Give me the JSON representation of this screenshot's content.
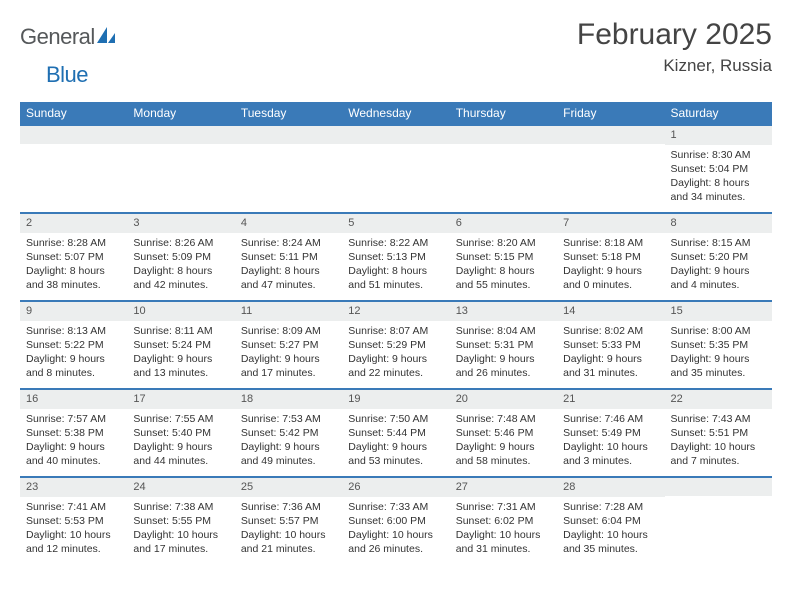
{
  "brand": {
    "name1": "General",
    "name2": "Blue"
  },
  "title": "February 2025",
  "location": "Kizner, Russia",
  "colors": {
    "header_bg": "#3a7ab8",
    "header_text": "#ffffff",
    "border": "#3a7ab8",
    "daynum_bg": "#eceeee",
    "text": "#333333",
    "brand_gray": "#55585a",
    "brand_blue": "#1f6fb2",
    "page_bg": "#ffffff"
  },
  "weekdays": [
    "Sunday",
    "Monday",
    "Tuesday",
    "Wednesday",
    "Thursday",
    "Friday",
    "Saturday"
  ],
  "weeks": [
    [
      null,
      null,
      null,
      null,
      null,
      null,
      {
        "n": "1",
        "sr": "8:30 AM",
        "ss": "5:04 PM",
        "dl": "8 hours and 34 minutes."
      }
    ],
    [
      {
        "n": "2",
        "sr": "8:28 AM",
        "ss": "5:07 PM",
        "dl": "8 hours and 38 minutes."
      },
      {
        "n": "3",
        "sr": "8:26 AM",
        "ss": "5:09 PM",
        "dl": "8 hours and 42 minutes."
      },
      {
        "n": "4",
        "sr": "8:24 AM",
        "ss": "5:11 PM",
        "dl": "8 hours and 47 minutes."
      },
      {
        "n": "5",
        "sr": "8:22 AM",
        "ss": "5:13 PM",
        "dl": "8 hours and 51 minutes."
      },
      {
        "n": "6",
        "sr": "8:20 AM",
        "ss": "5:15 PM",
        "dl": "8 hours and 55 minutes."
      },
      {
        "n": "7",
        "sr": "8:18 AM",
        "ss": "5:18 PM",
        "dl": "9 hours and 0 minutes."
      },
      {
        "n": "8",
        "sr": "8:15 AM",
        "ss": "5:20 PM",
        "dl": "9 hours and 4 minutes."
      }
    ],
    [
      {
        "n": "9",
        "sr": "8:13 AM",
        "ss": "5:22 PM",
        "dl": "9 hours and 8 minutes."
      },
      {
        "n": "10",
        "sr": "8:11 AM",
        "ss": "5:24 PM",
        "dl": "9 hours and 13 minutes."
      },
      {
        "n": "11",
        "sr": "8:09 AM",
        "ss": "5:27 PM",
        "dl": "9 hours and 17 minutes."
      },
      {
        "n": "12",
        "sr": "8:07 AM",
        "ss": "5:29 PM",
        "dl": "9 hours and 22 minutes."
      },
      {
        "n": "13",
        "sr": "8:04 AM",
        "ss": "5:31 PM",
        "dl": "9 hours and 26 minutes."
      },
      {
        "n": "14",
        "sr": "8:02 AM",
        "ss": "5:33 PM",
        "dl": "9 hours and 31 minutes."
      },
      {
        "n": "15",
        "sr": "8:00 AM",
        "ss": "5:35 PM",
        "dl": "9 hours and 35 minutes."
      }
    ],
    [
      {
        "n": "16",
        "sr": "7:57 AM",
        "ss": "5:38 PM",
        "dl": "9 hours and 40 minutes."
      },
      {
        "n": "17",
        "sr": "7:55 AM",
        "ss": "5:40 PM",
        "dl": "9 hours and 44 minutes."
      },
      {
        "n": "18",
        "sr": "7:53 AM",
        "ss": "5:42 PM",
        "dl": "9 hours and 49 minutes."
      },
      {
        "n": "19",
        "sr": "7:50 AM",
        "ss": "5:44 PM",
        "dl": "9 hours and 53 minutes."
      },
      {
        "n": "20",
        "sr": "7:48 AM",
        "ss": "5:46 PM",
        "dl": "9 hours and 58 minutes."
      },
      {
        "n": "21",
        "sr": "7:46 AM",
        "ss": "5:49 PM",
        "dl": "10 hours and 3 minutes."
      },
      {
        "n": "22",
        "sr": "7:43 AM",
        "ss": "5:51 PM",
        "dl": "10 hours and 7 minutes."
      }
    ],
    [
      {
        "n": "23",
        "sr": "7:41 AM",
        "ss": "5:53 PM",
        "dl": "10 hours and 12 minutes."
      },
      {
        "n": "24",
        "sr": "7:38 AM",
        "ss": "5:55 PM",
        "dl": "10 hours and 17 minutes."
      },
      {
        "n": "25",
        "sr": "7:36 AM",
        "ss": "5:57 PM",
        "dl": "10 hours and 21 minutes."
      },
      {
        "n": "26",
        "sr": "7:33 AM",
        "ss": "6:00 PM",
        "dl": "10 hours and 26 minutes."
      },
      {
        "n": "27",
        "sr": "7:31 AM",
        "ss": "6:02 PM",
        "dl": "10 hours and 31 minutes."
      },
      {
        "n": "28",
        "sr": "7:28 AM",
        "ss": "6:04 PM",
        "dl": "10 hours and 35 minutes."
      },
      null
    ]
  ],
  "labels": {
    "sunrise": "Sunrise:",
    "sunset": "Sunset:",
    "daylight": "Daylight:"
  }
}
